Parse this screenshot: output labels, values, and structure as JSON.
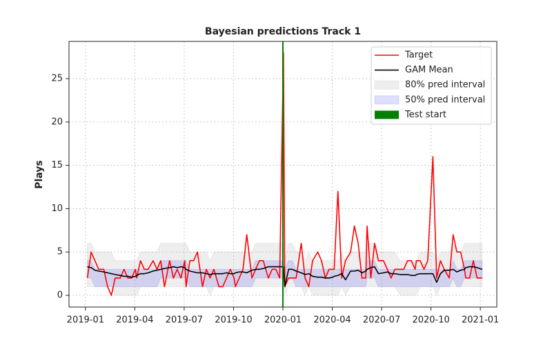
{
  "chart_data": {
    "type": "line",
    "title": "Bayesian predictions Track 1",
    "y_label": "Plays",
    "x": [
      "2019-01",
      "2019-01",
      "2019-01",
      "2019-01",
      "2019-02",
      "2019-02",
      "2019-02",
      "2019-02",
      "2019-03",
      "2019-03",
      "2019-03",
      "2019-03",
      "2019-03",
      "2019-04",
      "2019-04",
      "2019-04",
      "2019-04",
      "2019-05",
      "2019-05",
      "2019-05",
      "2019-05",
      "2019-06",
      "2019-06",
      "2019-06",
      "2019-06",
      "2019-06",
      "2019-07",
      "2019-07",
      "2019-07",
      "2019-07",
      "2019-08",
      "2019-08",
      "2019-08",
      "2019-08",
      "2019-09",
      "2019-09",
      "2019-09",
      "2019-09",
      "2019-09",
      "2019-10",
      "2019-10",
      "2019-10",
      "2019-10",
      "2019-11",
      "2019-11",
      "2019-11",
      "2019-11",
      "2019-12",
      "2019-12",
      "2019-12",
      "2019-12",
      "2019-12",
      "2020-01",
      "2020-01",
      "2020-01",
      "2020-01",
      "2020-02",
      "2020-02",
      "2020-02",
      "2020-02",
      "2020-03",
      "2020-03",
      "2020-03",
      "2020-03",
      "2020-03",
      "2020-04",
      "2020-04",
      "2020-04",
      "2020-04",
      "2020-05",
      "2020-05",
      "2020-05",
      "2020-05",
      "2020-05",
      "2020-06",
      "2020-06",
      "2020-06",
      "2020-06",
      "2020-07",
      "2020-07",
      "2020-07",
      "2020-07",
      "2020-08",
      "2020-08",
      "2020-08",
      "2020-08",
      "2020-08",
      "2020-09",
      "2020-09",
      "2020-09",
      "2020-09",
      "2020-10",
      "2020-10",
      "2020-10",
      "2020-10",
      "2020-11",
      "2020-11",
      "2020-11",
      "2020-11",
      "2020-11",
      "2020-12",
      "2020-12",
      "2020-12",
      "2020-12",
      "2021-01"
    ],
    "series": [
      {
        "name": "Target",
        "color": "red",
        "values": [
          2,
          5,
          4,
          3,
          3,
          1,
          0,
          2,
          2,
          3,
          2,
          2,
          3,
          2,
          4,
          3,
          3,
          4,
          3,
          4,
          1,
          4,
          2,
          3,
          2,
          4,
          1,
          4,
          4,
          5,
          1,
          3,
          2,
          3,
          1,
          1,
          2,
          3,
          2,
          1,
          2,
          3,
          7,
          2,
          3,
          4,
          4,
          2,
          3,
          3,
          2,
          28,
          1,
          2,
          2,
          2,
          6,
          2,
          1,
          4,
          5,
          4,
          2,
          3,
          3,
          3,
          12,
          2,
          4,
          5,
          8,
          6,
          2,
          2,
          8,
          2,
          6,
          4,
          4,
          3,
          2,
          3,
          3,
          3,
          4,
          4,
          3,
          4,
          4,
          3,
          4,
          16,
          2,
          4,
          3,
          2,
          7,
          5,
          5,
          3,
          2,
          2,
          4,
          2,
          2
        ]
      },
      {
        "name": "GAM Mean",
        "color": "black",
        "values": [
          3.3,
          3.2,
          2.9,
          2.8,
          2.7,
          2.6,
          2.5,
          2.4,
          2.3,
          2.2,
          2.2,
          2.1,
          2.2,
          2.3,
          2.5,
          2.5,
          2.6,
          2.8,
          2.9,
          3.0,
          3.1,
          3.2,
          3.3,
          3.2,
          3.3,
          3.2,
          3.0,
          2.8,
          2.7,
          2.6,
          2.6,
          2.5,
          2.4,
          2.5,
          2.5,
          2.5,
          2.6,
          2.5,
          2.5,
          2.6,
          2.7,
          2.7,
          2.6,
          2.9,
          3.0,
          3.0,
          3.1,
          3.3,
          3.3,
          3.3,
          3.3,
          3.3,
          1.0,
          3.0,
          3.0,
          2.8,
          2.6,
          2.4,
          2.5,
          2.2,
          2.1,
          2.1,
          2.0,
          2.0,
          2.1,
          2.2,
          2.3,
          2.5,
          1.8,
          2.8,
          2.8,
          2.9,
          2.6,
          2.8,
          3.0,
          3.2,
          3.3,
          2.5,
          2.6,
          2.7,
          2.5,
          2.5,
          2.4,
          2.4,
          2.4,
          2.3,
          2.3,
          2.4,
          2.5,
          2.5,
          2.5,
          2.5,
          1.5,
          2.5,
          2.9,
          2.9,
          3.0,
          2.7,
          2.9,
          3.0,
          3.2,
          3.3,
          3.3,
          3.2,
          3.0
        ]
      },
      {
        "name": "80% pred interval",
        "color": "#bdbdbd",
        "opacity": 0.25,
        "lower": [
          1,
          1,
          1,
          1,
          1,
          1,
          1,
          0,
          0,
          0,
          0,
          0,
          0,
          0,
          1,
          1,
          1,
          1,
          1,
          1,
          1,
          1,
          1,
          1,
          1,
          1,
          1,
          1,
          1,
          1,
          1,
          1,
          0,
          1,
          1,
          1,
          1,
          1,
          1,
          1,
          1,
          1,
          1,
          1,
          1,
          1,
          1,
          1,
          1,
          1,
          1,
          1,
          0,
          1,
          1,
          1,
          1,
          0,
          1,
          0,
          0,
          0,
          0,
          0,
          0,
          0,
          0,
          1,
          0,
          1,
          1,
          1,
          1,
          1,
          1,
          1,
          1,
          1,
          1,
          1,
          1,
          1,
          0,
          0,
          0,
          0,
          0,
          0,
          1,
          1,
          1,
          1,
          0,
          1,
          1,
          1,
          1,
          1,
          1,
          1,
          1,
          1,
          1,
          1,
          1
        ],
        "upper": [
          6,
          6,
          5,
          5,
          5,
          5,
          5,
          4,
          4,
          4,
          4,
          4,
          4,
          4,
          5,
          5,
          5,
          5,
          5,
          6,
          6,
          6,
          6,
          6,
          6,
          6,
          6,
          5,
          5,
          5,
          5,
          5,
          4,
          5,
          5,
          5,
          5,
          5,
          5,
          5,
          5,
          5,
          5,
          5,
          6,
          6,
          6,
          6,
          6,
          6,
          6,
          6,
          4,
          6,
          6,
          5,
          5,
          4,
          5,
          4,
          4,
          4,
          4,
          4,
          4,
          4,
          4,
          5,
          4,
          5,
          5,
          5,
          5,
          5,
          6,
          6,
          6,
          5,
          5,
          5,
          5,
          5,
          4,
          4,
          4,
          4,
          4,
          4,
          5,
          5,
          5,
          5,
          4,
          5,
          5,
          5,
          6,
          5,
          5,
          6,
          6,
          6,
          6,
          6,
          6
        ]
      },
      {
        "name": "50% pred interval",
        "color": "#6f6ff0",
        "opacity": 0.22,
        "lower": [
          2,
          2,
          1,
          1,
          1,
          1,
          1,
          1,
          1,
          1,
          1,
          1,
          1,
          1,
          1,
          1,
          1,
          1,
          1,
          2,
          2,
          2,
          2,
          2,
          2,
          2,
          2,
          1,
          1,
          1,
          1,
          1,
          1,
          1,
          1,
          1,
          1,
          1,
          1,
          1,
          1,
          1,
          1,
          1,
          2,
          2,
          2,
          2,
          2,
          2,
          2,
          2,
          1,
          2,
          2,
          1,
          1,
          1,
          1,
          1,
          1,
          1,
          1,
          1,
          1,
          1,
          1,
          1,
          1,
          1,
          1,
          1,
          1,
          1,
          2,
          2,
          2,
          1,
          1,
          1,
          1,
          1,
          1,
          1,
          1,
          1,
          1,
          1,
          1,
          1,
          1,
          1,
          1,
          1,
          1,
          1,
          2,
          1,
          1,
          2,
          2,
          2,
          2,
          2,
          2
        ],
        "upper": [
          4,
          4,
          3,
          3,
          3,
          3,
          3,
          3,
          3,
          3,
          3,
          3,
          3,
          3,
          3,
          3,
          3,
          3,
          3,
          4,
          4,
          4,
          4,
          4,
          4,
          4,
          4,
          3,
          3,
          3,
          3,
          3,
          3,
          3,
          3,
          3,
          3,
          3,
          3,
          3,
          3,
          3,
          3,
          3,
          4,
          4,
          4,
          4,
          4,
          4,
          4,
          4,
          3,
          4,
          4,
          3,
          3,
          3,
          3,
          3,
          3,
          3,
          3,
          3,
          3,
          3,
          3,
          3,
          3,
          3,
          3,
          3,
          3,
          3,
          4,
          4,
          4,
          3,
          3,
          3,
          3,
          3,
          3,
          3,
          3,
          3,
          3,
          3,
          3,
          3,
          3,
          3,
          3,
          3,
          3,
          3,
          4,
          3,
          3,
          4,
          4,
          4,
          4,
          4,
          4
        ]
      },
      {
        "name": "Test start",
        "color": "green",
        "x": "2020-01"
      }
    ],
    "xlim": [
      "2018-12",
      "2021-02"
    ],
    "xticks": [
      "2019-01",
      "2019-04",
      "2019-07",
      "2019-10",
      "2020-01",
      "2020-04",
      "2020-07",
      "2020-10",
      "2021-01"
    ],
    "ylim": [
      -1.35,
      29.3
    ],
    "yticks": [
      0,
      5,
      10,
      15,
      20,
      25
    ],
    "grid": true,
    "legend": "upper right"
  }
}
